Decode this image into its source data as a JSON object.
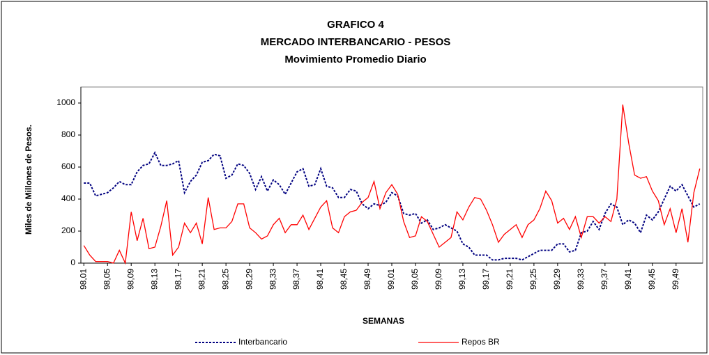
{
  "chart_data": {
    "type": "line",
    "title": [
      "GRAFICO 4",
      "MERCADO INTERBANCARIO  - PESOS",
      "Movimiento Promedio Diario"
    ],
    "x_label": "SEMANAS",
    "y_label": "Miles de Millones de Pesos.",
    "categories": [
      "98,01",
      null,
      null,
      null,
      "98,05",
      null,
      null,
      null,
      "98,09",
      null,
      null,
      null,
      "98,13",
      null,
      null,
      null,
      "98,17",
      null,
      null,
      null,
      "98,21",
      null,
      null,
      null,
      "98,25",
      null,
      null,
      null,
      "98,29",
      null,
      null,
      null,
      "98,33",
      null,
      null,
      null,
      "98,37",
      null,
      null,
      null,
      "98,41",
      null,
      null,
      null,
      "98,45",
      null,
      null,
      null,
      "98,49",
      null,
      null,
      null,
      "99,01",
      null,
      null,
      null,
      "99,05",
      null,
      null,
      null,
      "99,09",
      null,
      null,
      null,
      "99,13",
      null,
      null,
      null,
      "99,17",
      null,
      null,
      null,
      "99,21",
      null,
      null,
      null,
      "99,25",
      null,
      null,
      null,
      "99,29",
      null,
      null,
      null,
      "99,33",
      null,
      null,
      null,
      "99,37",
      null,
      null,
      null,
      "99,41",
      null,
      null,
      null,
      "99,45",
      null,
      null,
      null,
      "99,49",
      null,
      null,
      null,
      null
    ],
    "series": [
      {
        "name": "Interbancario",
        "color": "#000080",
        "line_style": "dotted",
        "values": [
          500,
          500,
          420,
          430,
          440,
          470,
          510,
          490,
          490,
          570,
          610,
          620,
          690,
          610,
          610,
          620,
          640,
          440,
          510,
          550,
          630,
          640,
          680,
          670,
          530,
          550,
          620,
          610,
          560,
          460,
          540,
          450,
          520,
          490,
          430,
          500,
          570,
          590,
          480,
          490,
          590,
          480,
          470,
          410,
          410,
          460,
          450,
          370,
          340,
          370,
          360,
          380,
          440,
          420,
          310,
          300,
          310,
          250,
          270,
          210,
          220,
          240,
          220,
          200,
          120,
          100,
          50,
          50,
          50,
          20,
          20,
          30,
          30,
          30,
          20,
          40,
          60,
          80,
          80,
          80,
          120,
          120,
          70,
          80,
          190,
          200,
          260,
          210,
          310,
          370,
          350,
          240,
          270,
          250,
          190,
          300,
          270,
          320,
          400,
          480,
          450,
          490,
          420,
          350,
          370
        ]
      },
      {
        "name": "Repos BR",
        "color": "#ff0000",
        "line_style": "solid",
        "values": [
          110,
          50,
          10,
          10,
          10,
          0,
          80,
          0,
          320,
          140,
          280,
          90,
          100,
          230,
          390,
          50,
          100,
          250,
          190,
          250,
          120,
          410,
          210,
          220,
          220,
          260,
          370,
          370,
          220,
          190,
          150,
          170,
          240,
          280,
          190,
          240,
          240,
          300,
          210,
          280,
          350,
          390,
          220,
          190,
          290,
          320,
          330,
          380,
          410,
          510,
          340,
          440,
          490,
          430,
          260,
          160,
          170,
          290,
          260,
          180,
          100,
          130,
          160,
          320,
          270,
          350,
          410,
          400,
          330,
          240,
          130,
          180,
          210,
          240,
          160,
          240,
          270,
          340,
          450,
          390,
          250,
          280,
          210,
          290,
          160,
          290,
          290,
          250,
          290,
          260,
          400,
          990,
          750,
          550,
          530,
          540,
          450,
          390,
          240,
          340,
          190,
          340,
          130,
          440,
          590
        ]
      }
    ],
    "ylim": [
      0,
      1100
    ],
    "yticks": [
      0,
      200,
      400,
      600,
      800,
      1000
    ],
    "grid": false,
    "legend": "bottom"
  }
}
